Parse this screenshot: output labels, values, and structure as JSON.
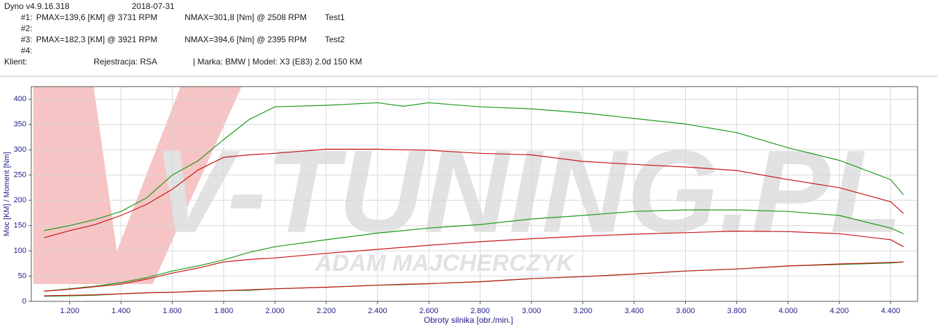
{
  "header": {
    "app": "Dyno v4.9.16.318",
    "date": "2018-07-31",
    "runs": [
      {
        "id": "#1:",
        "pmax": "PMAX=139,6 [KM] @ 3731 RPM",
        "nmax": "NMAX=301,8 [Nm] @ 2508 RPM",
        "name": "Test1"
      },
      {
        "id": "#2:"
      },
      {
        "id": "#3:",
        "pmax": "PMAX=182,3 [KM] @ 3921 RPM",
        "nmax": "NMAX=394,6 [Nm] @ 2395 RPM",
        "name": "Test2"
      },
      {
        "id": "#4:"
      }
    ],
    "client": "Klient:",
    "registration": "Rejestracja: RSA",
    "vehicle": "| Marka: BMW | Model: X3 (E83) 2.0d 150 KM"
  },
  "watermark": {
    "brand": "V-TUNING.PL",
    "owner": "ADAM MAJCHERCZYK"
  },
  "chart_data": {
    "type": "line",
    "xlabel": "Obroty silnika [obr./min.]",
    "ylabel": "Moc [KM] / Moment [Nm]",
    "x": [
      1100,
      1200,
      1300,
      1400,
      1500,
      1600,
      1700,
      1800,
      1900,
      2000,
      2200,
      2400,
      2500,
      2600,
      2800,
      3000,
      3200,
      3400,
      3600,
      3800,
      4000,
      4200,
      4400,
      4450
    ],
    "series": [
      {
        "color": "#1a9a1a",
        "values": [
          140,
          150,
          162,
          178,
          205,
          250,
          278,
          320,
          360,
          385,
          388,
          393,
          386,
          393,
          385,
          381,
          373,
          362,
          351,
          334,
          304,
          279,
          241,
          211
        ]
      },
      {
        "color": "#c81414",
        "values": [
          126,
          140,
          152,
          170,
          192,
          222,
          260,
          285,
          290,
          293,
          301,
          301,
          300,
          299,
          293,
          290,
          277,
          271,
          266,
          259,
          241,
          225,
          197,
          174
        ]
      },
      {
        "color": "#1a9a1a",
        "values": [
          20,
          25,
          30,
          37,
          47,
          60,
          70,
          82,
          97,
          108,
          122,
          135,
          140,
          145,
          152,
          163,
          170,
          178,
          181,
          181,
          178,
          170,
          145,
          134
        ]
      },
      {
        "color": "#c81414",
        "values": [
          20,
          24,
          29,
          34,
          44,
          56,
          66,
          78,
          83,
          86,
          95,
          103,
          107,
          111,
          118,
          124,
          129,
          133,
          136,
          139,
          138,
          134,
          122,
          108
        ]
      },
      {
        "color": "#1a9a1a",
        "values": [
          10,
          11,
          12,
          15,
          17,
          18,
          20,
          21,
          22,
          25,
          28,
          32,
          33,
          35,
          39,
          45,
          49,
          54,
          60,
          64,
          70,
          73,
          76,
          78
        ]
      },
      {
        "color": "#c81414",
        "values": [
          11,
          12,
          13,
          15,
          17,
          18,
          20,
          21,
          23,
          25,
          28,
          32,
          34,
          35,
          39,
          45,
          49,
          54,
          60,
          64,
          70,
          74,
          77,
          78
        ]
      }
    ],
    "xlim": [
      1050,
      4505
    ],
    "ylim": [
      0,
      425
    ],
    "xticks": [
      {
        "value": 1200,
        "label": "1.200"
      },
      {
        "value": 1400,
        "label": "1.400"
      },
      {
        "value": 1600,
        "label": "1.600"
      },
      {
        "value": 1800,
        "label": "1.800"
      },
      {
        "value": 2000,
        "label": "2.000"
      },
      {
        "value": 2200,
        "label": "2.200"
      },
      {
        "value": 2400,
        "label": "2.400"
      },
      {
        "value": 2600,
        "label": "2.600"
      },
      {
        "value": 2800,
        "label": "2.800"
      },
      {
        "value": 3000,
        "label": "3.000"
      },
      {
        "value": 3200,
        "label": "3.200"
      },
      {
        "value": 3400,
        "label": "3.400"
      },
      {
        "value": 3600,
        "label": "3.600"
      },
      {
        "value": 3800,
        "label": "3.800"
      },
      {
        "value": 4000,
        "label": "4.000"
      },
      {
        "value": 4200,
        "label": "4.200"
      },
      {
        "value": 4400,
        "label": "4.400"
      }
    ],
    "yticks": [
      0,
      50,
      100,
      150,
      200,
      250,
      300,
      350,
      400
    ],
    "grid": true
  }
}
